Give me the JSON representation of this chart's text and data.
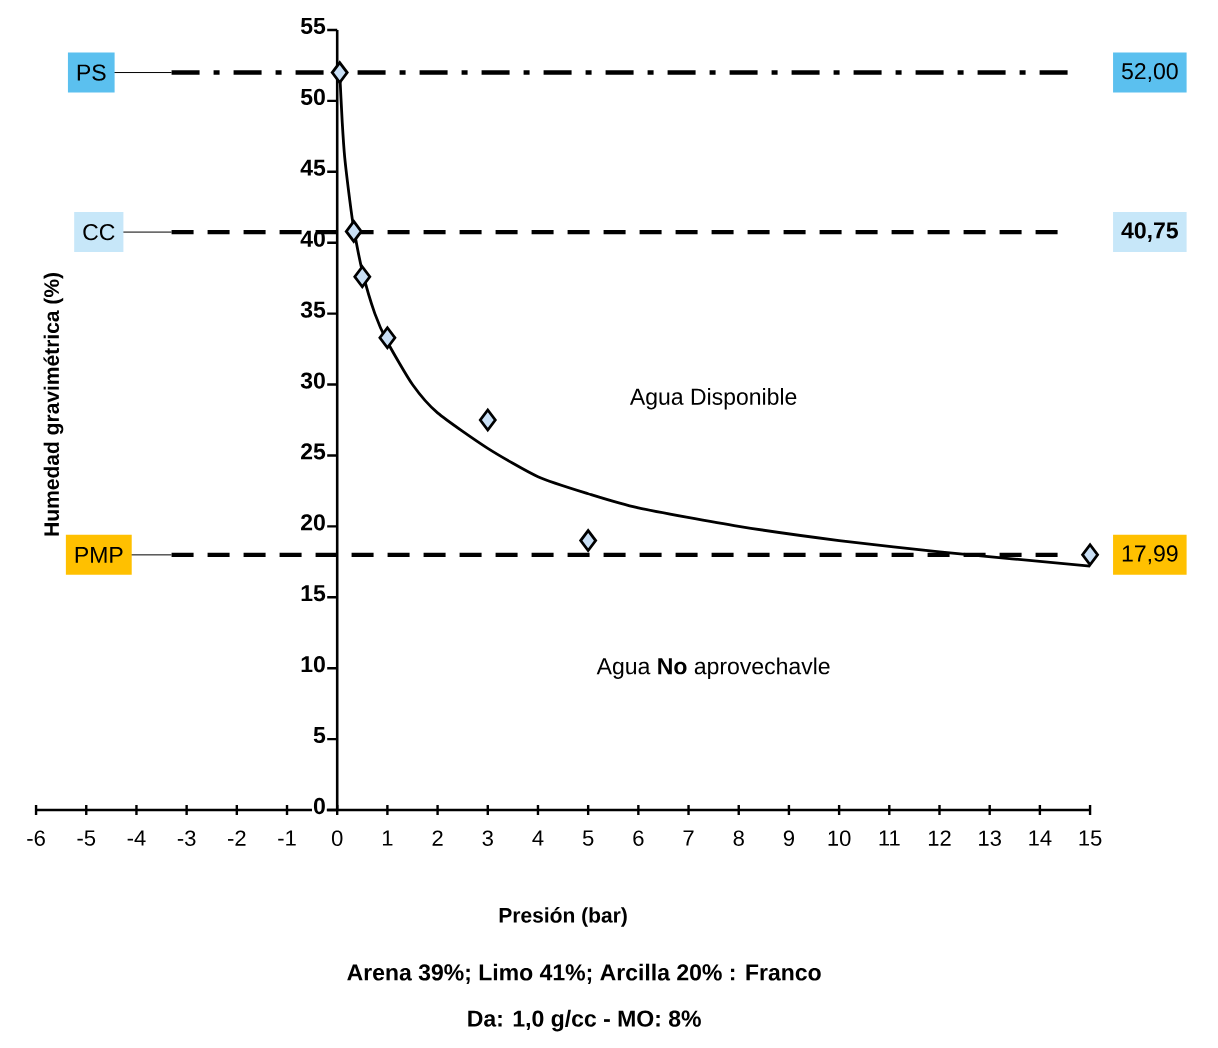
{
  "chart_data": {
    "type": "scatter",
    "xlabel": "Presión (bar)",
    "ylabel": "Humedad gravimétrica (%)",
    "xlim": [
      -6,
      15
    ],
    "xticks": [
      -6,
      -5,
      -4,
      -3,
      -2,
      -1,
      0,
      1,
      2,
      3,
      4,
      5,
      6,
      7,
      8,
      9,
      10,
      11,
      12,
      13,
      14,
      15
    ],
    "ylim": [
      0,
      55
    ],
    "yticks": [
      0,
      5,
      10,
      15,
      20,
      25,
      30,
      35,
      40,
      45,
      50,
      55
    ],
    "marker": "diamond",
    "series": [
      {
        "color": "#c9dff5",
        "x": [
          0.05,
          0.33,
          0.5,
          1,
          3,
          5,
          15
        ],
        "values": [
          52,
          40.8,
          37.6,
          33.3,
          27.5,
          19,
          18
        ]
      },
      {
        "type": "line",
        "marker": "none",
        "color": "#000000",
        "x": [
          0.05,
          0.1,
          0.15,
          0.25,
          0.33,
          0.5,
          0.75,
          1,
          1.5,
          2,
          3,
          4,
          5,
          6,
          8,
          10,
          12,
          15
        ],
        "values": [
          52,
          48.5,
          46,
          43,
          41,
          38,
          35,
          33,
          30,
          28,
          25.5,
          23.5,
          22.3,
          21.3,
          20,
          19,
          18.2,
          17.2
        ]
      }
    ],
    "ref_lines": [
      {
        "axis": "y",
        "value": 52,
        "label": "PS",
        "line_style": "dashdot",
        "color": "#000000"
      },
      {
        "axis": "y",
        "value": 40.75,
        "label": "CC",
        "line_style": "dashed",
        "color": "#000000"
      },
      {
        "axis": "y",
        "value": 17.99,
        "label": "PMP",
        "line_style": "dashed",
        "color": "#000000"
      }
    ],
    "annotations": [
      "Agua Disponible",
      "Agua **No** aprovechavle",
      "Arena 39%; Limo 41%; Arcilla 20% : Franco",
      "Da: 1,0 g/cc  -   MO: 8%",
      "52,00",
      "40,75",
      "17,99"
    ]
  }
}
